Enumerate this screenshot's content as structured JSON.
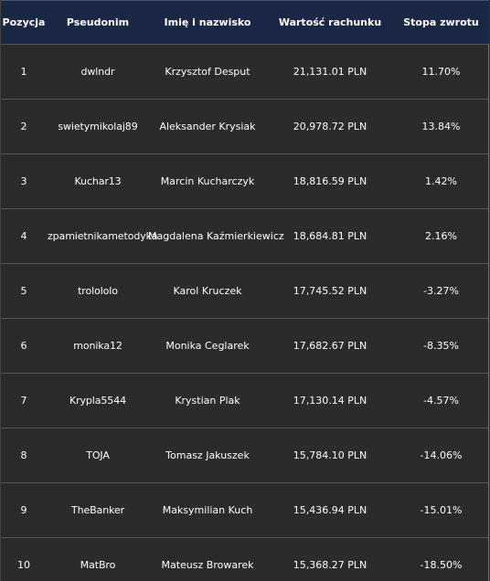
{
  "columns": [
    "Pozycja",
    "Pseudonim",
    "Imię i nazwisko",
    "Wartość rachunku",
    "Stopa zwrotu"
  ],
  "rows": [
    [
      "1",
      "dwlndr",
      "Krzysztof Desput",
      "21,131.01 PLN",
      "11.70%"
    ],
    [
      "2",
      "swietymikolaj89",
      "Aleksander Krysiak",
      "20,978.72 PLN",
      "13.84%"
    ],
    [
      "3",
      "Kuchar13",
      "Marcin Kucharczyk",
      "18,816.59 PLN",
      "1.42%"
    ],
    [
      "4",
      "zpamietnikametodyka",
      "Magdalena Kaźmierkiewicz",
      "18,684.81 PLN",
      "2.16%"
    ],
    [
      "5",
      "trolololo",
      "Karol Kruczek",
      "17,745.52 PLN",
      "-3.27%"
    ],
    [
      "6",
      "monika12",
      "Monika Ceglarek",
      "17,682.67 PLN",
      "-8.35%"
    ],
    [
      "7",
      "Krypla5544",
      "Krystian Plak",
      "17,130.14 PLN",
      "-4.57%"
    ],
    [
      "8",
      "TOJA",
      "Tomasz Jakuszek",
      "15,784.10 PLN",
      "-14.06%"
    ],
    [
      "9",
      "TheBanker",
      "Maksymilian Kuch",
      "15,436.94 PLN",
      "-15.01%"
    ],
    [
      "10",
      "MatBro",
      "Mateusz Browarek",
      "15,368.27 PLN",
      "-18.50%"
    ]
  ],
  "colors": {
    "header_bg": "#1b2845",
    "body_bg": "#2b2b2b",
    "row_divider": "#595959",
    "text": "#ffffff"
  }
}
